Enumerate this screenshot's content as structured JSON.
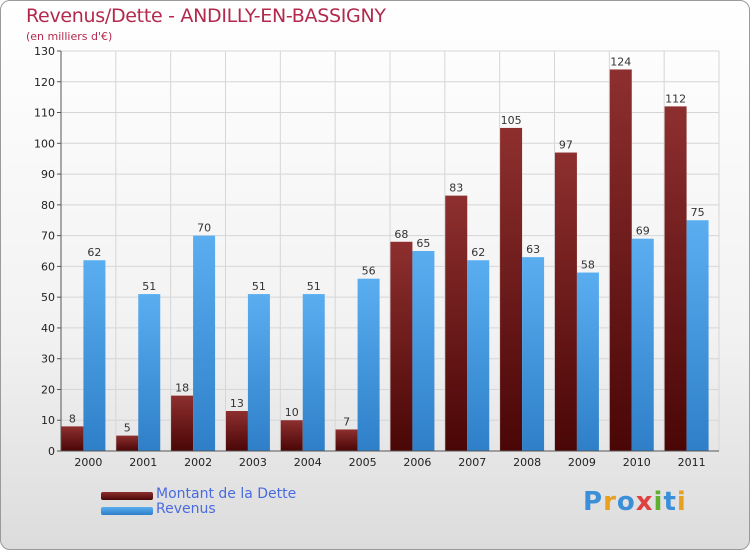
{
  "title": "Revenus/Dette - ANDILLY-EN-BASSIGNY",
  "subtitle": "(en milliers d'€)",
  "legend": [
    {
      "label": "Montant de la Dette",
      "color": "#7a1a1a"
    },
    {
      "label": "Revenus",
      "color": "#4a9fe0"
    }
  ],
  "logo": {
    "text": "Proxiti",
    "letters": [
      {
        "ch": "P",
        "color": "#3a8fd8"
      },
      {
        "ch": "r",
        "color": "#e8a020"
      },
      {
        "ch": "o",
        "color": "#3a8fd8"
      },
      {
        "ch": "x",
        "color": "#e04040"
      },
      {
        "ch": "i",
        "color": "#60b030"
      },
      {
        "ch": "t",
        "color": "#3a8fd8"
      },
      {
        "ch": "i",
        "color": "#e8a020"
      }
    ]
  },
  "chart_data": {
    "type": "bar",
    "title": "Revenus/Dette - ANDILLY-EN-BASSIGNY",
    "ylabel": "(en milliers d'€)",
    "xlabel": "",
    "ylim": [
      0,
      130
    ],
    "yticks": [
      0,
      10,
      20,
      30,
      40,
      50,
      60,
      70,
      80,
      90,
      100,
      110,
      120,
      130
    ],
    "grid": true,
    "legend_position": "bottom-left",
    "categories": [
      "2000",
      "2001",
      "2002",
      "2003",
      "2004",
      "2005",
      "2006",
      "2007",
      "2008",
      "2009",
      "2010",
      "2011"
    ],
    "series": [
      {
        "name": "Montant de la Dette",
        "values": [
          8,
          5,
          18,
          13,
          10,
          7,
          68,
          83,
          105,
          97,
          124,
          112
        ],
        "color": "#7a1a1a"
      },
      {
        "name": "Revenus",
        "values": [
          62,
          51,
          70,
          51,
          51,
          56,
          65,
          62,
          63,
          58,
          69,
          75
        ],
        "color": "#4a9fe0"
      }
    ]
  }
}
